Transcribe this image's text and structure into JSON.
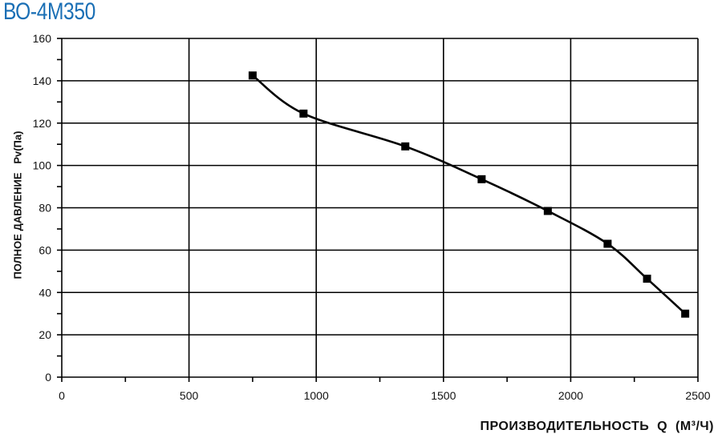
{
  "chart_data": {
    "type": "line",
    "title": "ВО-4М350",
    "xlabel": "ПРОИЗВОДИТЕЛЬНОСТЬ  Q  (М³/Ч)",
    "ylabel": "ПОЛНОЕ ДАВЛЕНИЕ   Pv(Па)",
    "xlim": [
      0,
      2500
    ],
    "ylim": [
      0,
      160
    ],
    "xticks": [
      0,
      500,
      1000,
      1500,
      2000,
      2500
    ],
    "yticks": [
      0,
      20,
      40,
      60,
      80,
      100,
      120,
      140,
      160
    ],
    "grid": true,
    "marker": "square",
    "colors": {
      "title": "#1a6fb5",
      "line": "#000000"
    },
    "series": [
      {
        "x": [
          750,
          950,
          1350,
          1650,
          1910,
          2145,
          2300,
          2450
        ],
        "y": [
          142.5,
          124.5,
          109,
          93.5,
          78.5,
          63,
          46.5,
          30
        ]
      }
    ]
  }
}
